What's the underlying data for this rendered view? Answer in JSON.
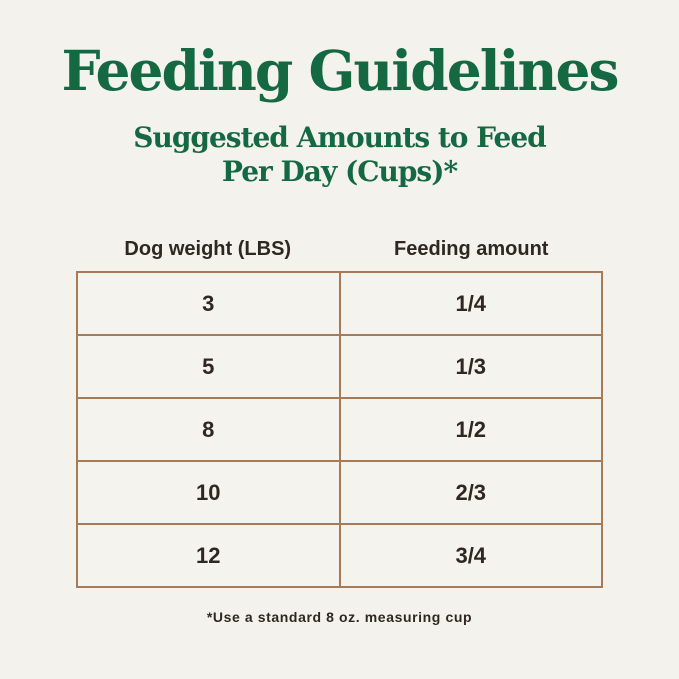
{
  "title": "Feeding Guidelines",
  "subtitle": {
    "line1": "Suggested Amounts to Feed",
    "line2": "Per Day (Cups)*"
  },
  "table": {
    "headers": [
      "Dog weight (LBS)",
      "Feeding amount"
    ],
    "rows": [
      {
        "weight": "3",
        "amount": "1/4"
      },
      {
        "weight": "5",
        "amount": "1/3"
      },
      {
        "weight": "8",
        "amount": "1/2"
      },
      {
        "weight": "10",
        "amount": "2/3"
      },
      {
        "weight": "12",
        "amount": "3/4"
      }
    ]
  },
  "footnote": "*Use a standard 8 oz. measuring cup",
  "colors": {
    "background": "#f4f2ec",
    "title_green": "#156942",
    "table_border": "#a57b58",
    "text_dark": "#2f2822"
  },
  "chart_data": {
    "type": "table",
    "title": "Feeding Guidelines",
    "subtitle": "Suggested Amounts to Feed Per Day (Cups)*",
    "columns": [
      "Dog weight (LBS)",
      "Feeding amount"
    ],
    "rows": [
      [
        "3",
        "1/4"
      ],
      [
        "5",
        "1/3"
      ],
      [
        "8",
        "1/2"
      ],
      [
        "10",
        "2/3"
      ],
      [
        "12",
        "3/4"
      ]
    ],
    "footnote": "*Use a standard 8 oz. measuring cup"
  }
}
